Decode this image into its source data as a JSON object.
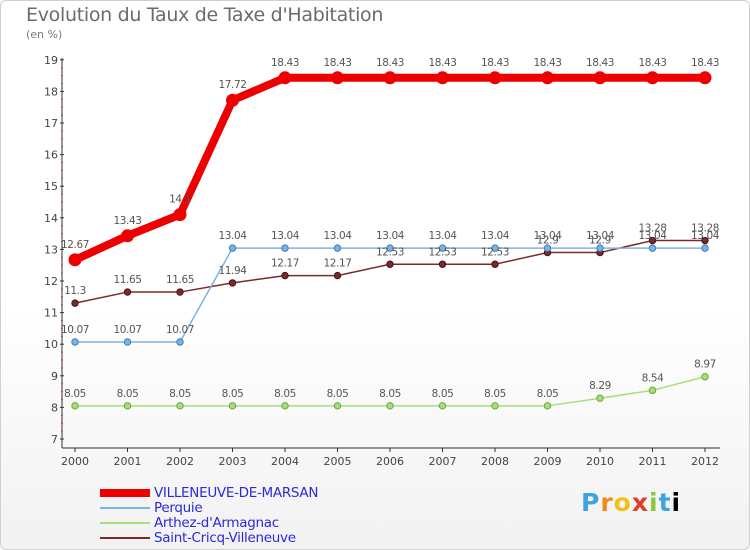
{
  "title": "Evolution du Taux de Taxe d'Habitation",
  "subtitle": "(en %)",
  "logo": "Proxiti",
  "chart_data": {
    "type": "line",
    "title": "Evolution du Taux de Taxe d'Habitation",
    "ylabel": "(en %)",
    "xlabel": "",
    "x": [
      "2000",
      "2001",
      "2002",
      "2003",
      "2004",
      "2005",
      "2006",
      "2007",
      "2008",
      "2009",
      "2010",
      "2011",
      "2012"
    ],
    "ylim": [
      7,
      19
    ],
    "yticks": [
      "7",
      "8",
      "9",
      "10",
      "11",
      "12",
      "13",
      "14",
      "15",
      "16",
      "17",
      "18",
      "19"
    ],
    "grid": false,
    "legend_position": "bottom-left",
    "series": [
      {
        "name": "VILLENEUVE-DE-MARSAN",
        "color": "#ee0000",
        "values": [
          12.67,
          13.43,
          14.1,
          17.72,
          18.43,
          18.43,
          18.43,
          18.43,
          18.43,
          18.43,
          18.43,
          18.43,
          18.43
        ],
        "labels": [
          "12.67",
          "13.43",
          "14.1",
          "17.72",
          "18.43",
          "18.43",
          "18.43",
          "18.43",
          "18.43",
          "18.43",
          "18.43",
          "18.43",
          "18.43"
        ]
      },
      {
        "name": "Perquie",
        "color": "#7fb2de",
        "values": [
          10.07,
          10.07,
          10.07,
          13.04,
          13.04,
          13.04,
          13.04,
          13.04,
          13.04,
          13.04,
          13.04,
          13.04,
          13.04
        ],
        "labels": [
          "10.07",
          "10.07",
          "10.07",
          "13.04",
          "13.04",
          "13.04",
          "13.04",
          "13.04",
          "13.04",
          "13.04",
          "13.04",
          "13.04",
          "13.04"
        ]
      },
      {
        "name": "Arthez-d'Armagnac",
        "color": "#a9dd7c",
        "values": [
          8.05,
          8.05,
          8.05,
          8.05,
          8.05,
          8.05,
          8.05,
          8.05,
          8.05,
          8.05,
          8.29,
          8.54,
          8.97
        ],
        "labels": [
          "8.05",
          "8.05",
          "8.05",
          "8.05",
          "8.05",
          "8.05",
          "8.05",
          "8.05",
          "8.05",
          "8.05",
          "8.29",
          "8.54",
          "8.97"
        ]
      },
      {
        "name": "Saint-Cricq-Villeneuve",
        "color": "#7a2a2a",
        "values": [
          11.3,
          11.65,
          11.65,
          11.94,
          12.17,
          12.17,
          12.53,
          12.53,
          12.53,
          12.9,
          12.9,
          13.28,
          13.28
        ],
        "labels": [
          "11.3",
          "11.65",
          "11.65",
          "11.94",
          "12.17",
          "12.17",
          "12.53",
          "12.53",
          "12.53",
          "12.9",
          "12.9",
          "13.28",
          "13.28"
        ]
      }
    ]
  }
}
